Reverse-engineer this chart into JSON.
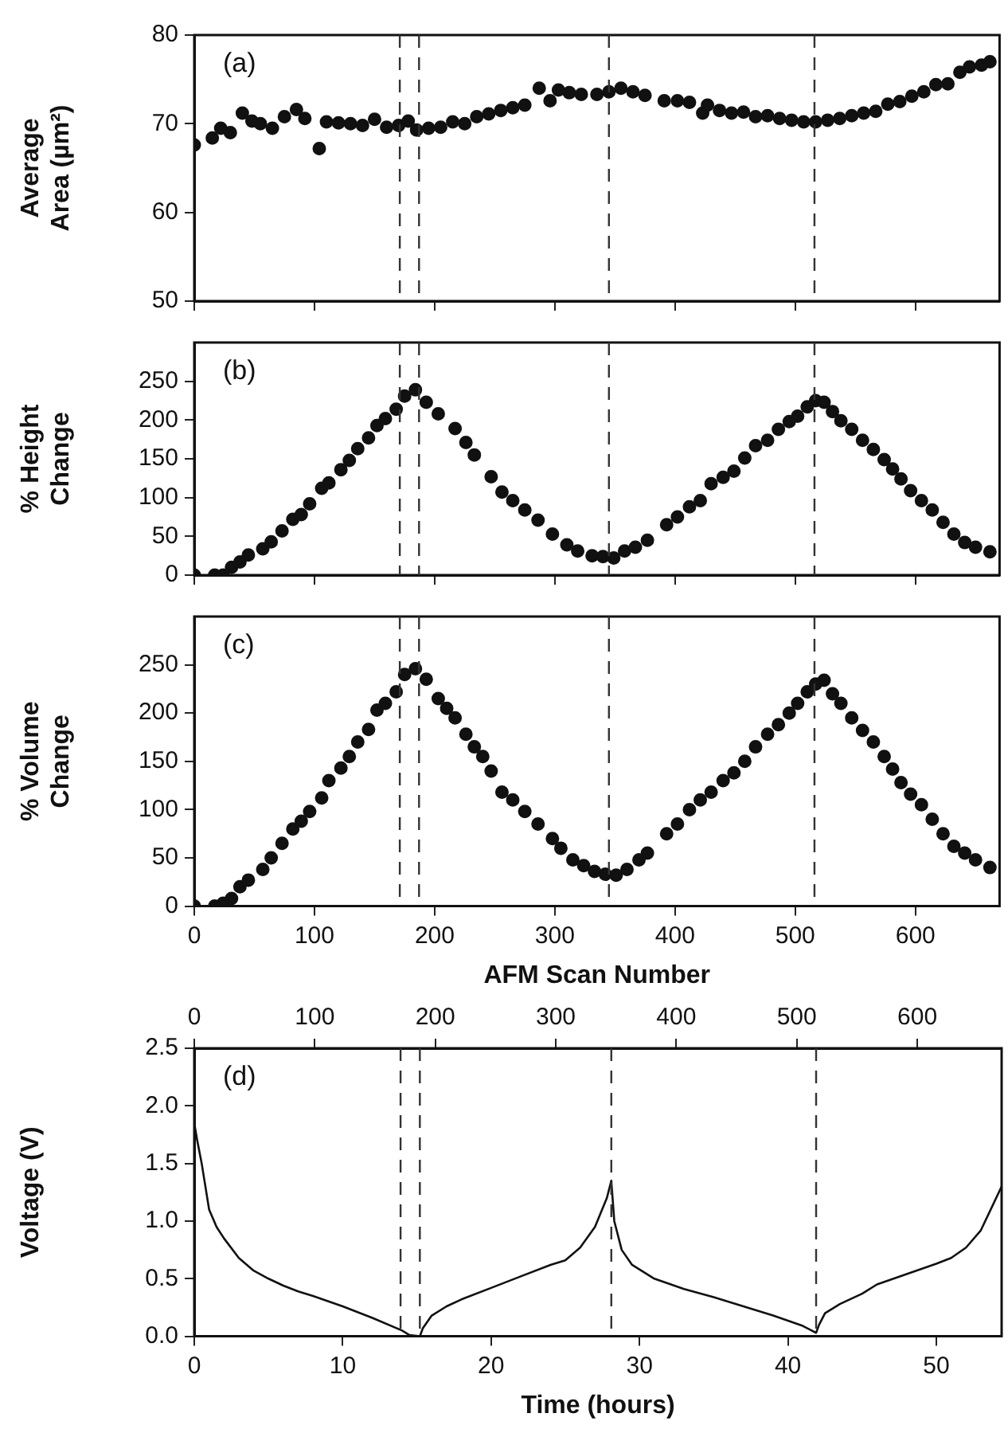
{
  "chart_data": [
    {
      "type": "scatter",
      "ylabel": "Average Area (µm²)",
      "annotations": [
        "(a)"
      ],
      "marker": "circle",
      "grid": false,
      "tick_labels": "y",
      "xlim": [
        0,
        670
      ],
      "xticks": [
        0,
        100,
        200,
        300,
        400,
        500,
        600
      ],
      "ylim": [
        50,
        80
      ],
      "yticks": [
        50,
        60,
        70,
        80
      ],
      "ref_lines": [
        {
          "axis": "x",
          "value": 171,
          "line_style": "dashed"
        },
        {
          "axis": "x",
          "value": 187,
          "line_style": "dashed"
        },
        {
          "axis": "x",
          "value": 345,
          "line_style": "dashed"
        },
        {
          "axis": "x",
          "value": 516,
          "line_style": "dashed"
        }
      ],
      "series": [
        {
          "color": "#111111",
          "x": [
            0,
            15,
            22,
            30,
            40,
            48,
            55,
            65,
            75,
            85,
            92,
            104,
            110,
            120,
            130,
            140,
            150,
            160,
            170,
            178,
            185,
            195,
            205,
            215,
            225,
            235,
            245,
            255,
            265,
            275,
            287,
            296,
            303,
            312,
            322,
            335,
            345,
            355,
            365,
            375,
            391,
            402,
            412,
            423,
            427,
            437,
            447,
            457,
            467,
            477,
            487,
            497,
            507,
            517,
            527,
            537,
            547,
            557,
            567,
            577,
            587,
            597,
            607,
            617,
            627,
            637,
            645,
            655,
            662
          ],
          "values": [
            67.6,
            68.4,
            69.5,
            69,
            71.2,
            70.3,
            70,
            69.5,
            70.8,
            71.6,
            70.6,
            67.2,
            70.2,
            70.1,
            70,
            69.8,
            70.5,
            69.6,
            69.8,
            70.3,
            69.3,
            69.5,
            69.6,
            70.2,
            70,
            70.8,
            71.1,
            71.5,
            71.8,
            72.1,
            74,
            72.6,
            73.8,
            73.5,
            73.3,
            73.3,
            73.6,
            74,
            73.6,
            73.2,
            72.6,
            72.6,
            72.4,
            71.2,
            72.1,
            71.5,
            71.2,
            71.3,
            70.8,
            70.9,
            70.6,
            70.4,
            70.2,
            70.2,
            70.4,
            70.6,
            70.9,
            71.2,
            71.4,
            72.2,
            72.5,
            73.1,
            73.6,
            74.4,
            74.5,
            75.8,
            76.4,
            76.6,
            77
          ]
        }
      ]
    },
    {
      "type": "scatter",
      "ylabel": "% Height Change",
      "annotations": [
        "(b)"
      ],
      "marker": "circle",
      "grid": false,
      "tick_labels": "y",
      "xlim": [
        0,
        670
      ],
      "xticks": [
        0,
        100,
        200,
        300,
        400,
        500,
        600
      ],
      "ylim": [
        0,
        300
      ],
      "yticks": [
        0,
        50,
        100,
        150,
        200,
        250
      ],
      "ref_lines": [
        {
          "axis": "x",
          "value": 171,
          "line_style": "dashed"
        },
        {
          "axis": "x",
          "value": 187,
          "line_style": "dashed"
        },
        {
          "axis": "x",
          "value": 345,
          "line_style": "dashed"
        },
        {
          "axis": "x",
          "value": 516,
          "line_style": "dashed"
        }
      ],
      "series": [
        {
          "color": "#111111",
          "x": [
            0,
            17,
            24,
            31,
            38,
            45,
            57,
            64,
            73,
            82,
            89,
            96,
            106,
            112,
            122,
            129,
            136,
            145,
            152,
            159,
            168,
            175,
            184,
            193,
            203,
            217,
            226,
            233,
            247,
            256,
            265,
            275,
            286,
            298,
            310,
            319,
            331,
            340,
            349,
            358,
            367,
            377,
            393,
            402,
            412,
            421,
            430,
            440,
            449,
            458,
            467,
            477,
            486,
            495,
            502,
            510,
            517,
            524,
            531,
            538,
            547,
            556,
            565,
            574,
            581,
            588,
            596,
            605,
            614,
            623,
            632,
            641,
            650,
            662
          ],
          "values": [
            0,
            0,
            0,
            10,
            17,
            26,
            34,
            43,
            57,
            72,
            78,
            92,
            112,
            119,
            136,
            148,
            163,
            177,
            193,
            202,
            214,
            231,
            239,
            223,
            208,
            189,
            171,
            155,
            127,
            107,
            96,
            84,
            71,
            53,
            39,
            31,
            25,
            24,
            22,
            31,
            36,
            45,
            65,
            75,
            88,
            96,
            118,
            126,
            134,
            151,
            167,
            174,
            188,
            198,
            205,
            217,
            225,
            223,
            211,
            199,
            188,
            174,
            162,
            149,
            137,
            124,
            109,
            96,
            84,
            68,
            53,
            42,
            36,
            30
          ]
        }
      ]
    },
    {
      "type": "scatter",
      "ylabel": "% Volume Change",
      "xlabel": "AFM Scan Number",
      "annotations": [
        "(c)"
      ],
      "marker": "circle",
      "grid": false,
      "xlim": [
        0,
        670
      ],
      "xticks": [
        0,
        100,
        200,
        300,
        400,
        500,
        600
      ],
      "ylim": [
        0,
        300
      ],
      "yticks": [
        0,
        50,
        100,
        150,
        200,
        250
      ],
      "ref_lines": [
        {
          "axis": "x",
          "value": 171,
          "line_style": "dashed"
        },
        {
          "axis": "x",
          "value": 187,
          "line_style": "dashed"
        },
        {
          "axis": "x",
          "value": 345,
          "line_style": "dashed"
        },
        {
          "axis": "x",
          "value": 516,
          "line_style": "dashed"
        }
      ],
      "series": [
        {
          "color": "#111111",
          "x": [
            0,
            17,
            24,
            31,
            38,
            45,
            57,
            64,
            73,
            82,
            89,
            96,
            106,
            112,
            122,
            129,
            136,
            145,
            152,
            159,
            168,
            175,
            184,
            193,
            203,
            210,
            217,
            226,
            233,
            240,
            247,
            256,
            265,
            275,
            286,
            298,
            305,
            315,
            324,
            333,
            342,
            351,
            360,
            370,
            377,
            393,
            402,
            412,
            421,
            430,
            440,
            449,
            458,
            467,
            477,
            486,
            495,
            502,
            510,
            517,
            524,
            531,
            538,
            547,
            556,
            565,
            574,
            581,
            588,
            596,
            605,
            614,
            623,
            632,
            641,
            650,
            662
          ],
          "values": [
            0,
            0,
            3,
            8,
            20,
            27,
            38,
            50,
            65,
            80,
            88,
            98,
            112,
            130,
            143,
            155,
            170,
            183,
            203,
            210,
            222,
            240,
            246,
            235,
            215,
            205,
            195,
            178,
            165,
            155,
            140,
            118,
            110,
            98,
            85,
            70,
            60,
            48,
            42,
            36,
            33,
            32,
            38,
            48,
            55,
            75,
            85,
            100,
            110,
            118,
            130,
            138,
            150,
            165,
            178,
            188,
            200,
            210,
            222,
            230,
            234,
            220,
            210,
            195,
            182,
            170,
            155,
            142,
            128,
            116,
            105,
            90,
            75,
            62,
            55,
            48,
            40
          ]
        }
      ]
    },
    {
      "type": "line",
      "ylabel": "Voltage (V)",
      "xlabel": "Time (hours)",
      "annotations": [
        "(d)"
      ],
      "marker": "none",
      "line_style": "solid",
      "grid": false,
      "xlim": [
        0,
        54.4
      ],
      "xticks": [
        0,
        10,
        20,
        30,
        40,
        50
      ],
      "x2lim": [
        0,
        670
      ],
      "x2ticks": [
        0,
        100,
        200,
        300,
        400,
        500,
        600
      ],
      "ylim": [
        0,
        2.5
      ],
      "yticks": [
        {
          "value": 0,
          "label": "0.0"
        },
        0.5,
        {
          "value": 1,
          "label": "1.0"
        },
        1.5,
        {
          "value": 2,
          "label": "2.0"
        },
        2.5
      ],
      "ref_lines": [
        {
          "axis": "x",
          "value": 13.9,
          "line_style": "dashed"
        },
        {
          "axis": "x",
          "value": 15.2,
          "line_style": "dashed"
        },
        {
          "axis": "x",
          "value": 28.1,
          "line_style": "dashed"
        },
        {
          "axis": "x",
          "value": 41.9,
          "line_style": "dashed"
        }
      ],
      "series": [
        {
          "color": "#111111",
          "x": [
            0,
            0.2,
            0.5,
            1,
            1.5,
            2,
            3,
            4,
            5,
            6,
            7,
            8,
            10,
            12,
            14,
            14.5,
            15.2,
            15.4,
            16,
            17,
            18,
            20,
            22,
            24,
            25,
            26,
            27,
            27.8,
            28.1,
            28.3,
            28.8,
            29.5,
            31,
            33,
            35,
            37,
            39,
            41,
            41.9,
            42.1,
            42.5,
            43.5,
            45,
            46,
            48,
            50,
            51,
            52,
            53,
            54.4
          ],
          "values": [
            1.85,
            1.7,
            1.5,
            1.1,
            0.95,
            0.85,
            0.68,
            0.57,
            0.5,
            0.44,
            0.39,
            0.35,
            0.26,
            0.16,
            0.05,
            0.01,
            0,
            0.07,
            0.18,
            0.26,
            0.32,
            0.42,
            0.52,
            0.62,
            0.66,
            0.77,
            0.95,
            1.2,
            1.35,
            1,
            0.75,
            0.62,
            0.5,
            0.41,
            0.34,
            0.26,
            0.18,
            0.09,
            0.03,
            0.1,
            0.2,
            0.28,
            0.37,
            0.45,
            0.54,
            0.63,
            0.68,
            0.77,
            0.92,
            1.3
          ]
        }
      ]
    }
  ]
}
